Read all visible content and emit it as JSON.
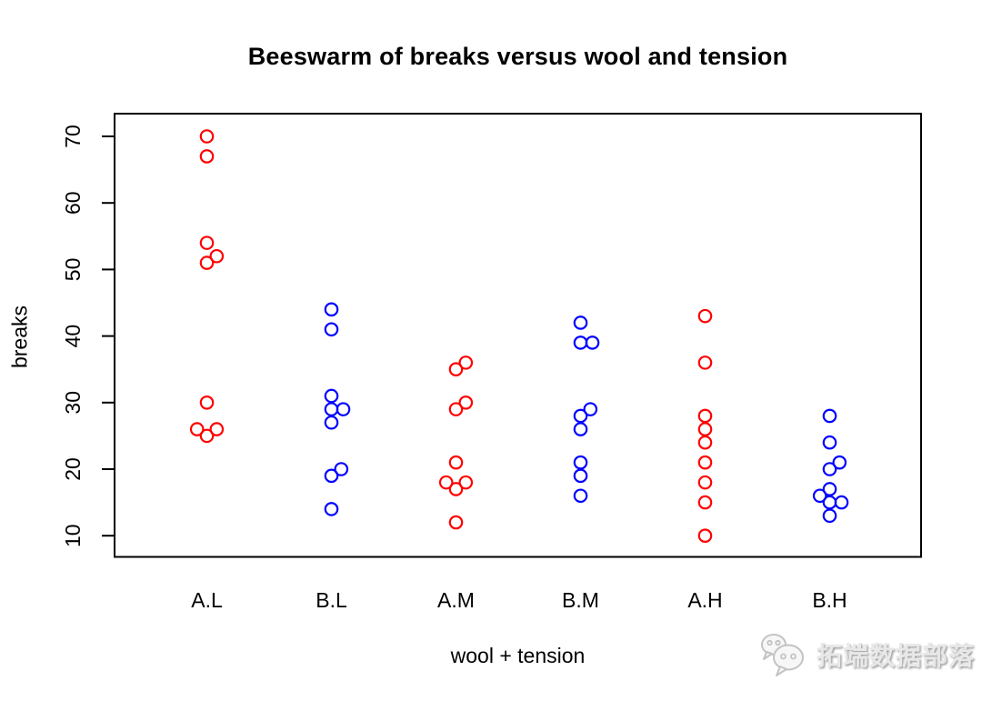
{
  "watermark": {
    "icon": "wechat-chat-bubbles-icon",
    "text": "拓端数据部落"
  },
  "chart_data": {
    "type": "scatter",
    "variant": "beeswarm",
    "title": "Beeswarm of breaks versus wool and tension",
    "xlabel": "wool + tension",
    "ylabel": "breaks",
    "x_categories": [
      "A.L",
      "B.L",
      "A.M",
      "B.M",
      "A.H",
      "B.H"
    ],
    "y_ticks": [
      10,
      20,
      30,
      40,
      50,
      60,
      70
    ],
    "ylim": [
      7.6,
      72.4
    ],
    "grid": false,
    "legend": "none",
    "marker": "open-circle",
    "series_colors": {
      "wool_A": "#ff0000",
      "wool_B": "#0000ff"
    },
    "groups": [
      {
        "label": "A.L",
        "wool": "A",
        "tension": "L",
        "color": "#ff0000",
        "points": [
          {
            "value": 70,
            "dx": 0
          },
          {
            "value": 67,
            "dx": 0
          },
          {
            "value": 54,
            "dx": 0
          },
          {
            "value": 52,
            "dx": 10.8
          },
          {
            "value": 51,
            "dx": 0
          },
          {
            "value": 30,
            "dx": 0
          },
          {
            "value": 26,
            "dx": -10.8
          },
          {
            "value": 26,
            "dx": 10.8
          },
          {
            "value": 25,
            "dx": 0
          }
        ]
      },
      {
        "label": "B.L",
        "wool": "B",
        "tension": "L",
        "color": "#0000ff",
        "points": [
          {
            "value": 44,
            "dx": 0
          },
          {
            "value": 41,
            "dx": 0
          },
          {
            "value": 31,
            "dx": 0
          },
          {
            "value": 29,
            "dx": 0
          },
          {
            "value": 29,
            "dx": 13
          },
          {
            "value": 27,
            "dx": 0
          },
          {
            "value": 20,
            "dx": 10.8
          },
          {
            "value": 19,
            "dx": 0
          },
          {
            "value": 14,
            "dx": 0
          }
        ]
      },
      {
        "label": "A.M",
        "wool": "A",
        "tension": "M",
        "color": "#ff0000",
        "points": [
          {
            "value": 36,
            "dx": 10.8
          },
          {
            "value": 35,
            "dx": 0
          },
          {
            "value": 30,
            "dx": 10.8
          },
          {
            "value": 29,
            "dx": 0
          },
          {
            "value": 21,
            "dx": 0
          },
          {
            "value": 18,
            "dx": -10.8
          },
          {
            "value": 18,
            "dx": 10.8
          },
          {
            "value": 17,
            "dx": 0
          },
          {
            "value": 12,
            "dx": 0
          }
        ]
      },
      {
        "label": "B.M",
        "wool": "B",
        "tension": "M",
        "color": "#0000ff",
        "points": [
          {
            "value": 42,
            "dx": 0
          },
          {
            "value": 39,
            "dx": 0
          },
          {
            "value": 39,
            "dx": 13
          },
          {
            "value": 29,
            "dx": 10.8
          },
          {
            "value": 28,
            "dx": 0
          },
          {
            "value": 26,
            "dx": 0
          },
          {
            "value": 21,
            "dx": 0
          },
          {
            "value": 19,
            "dx": 0
          },
          {
            "value": 16,
            "dx": 0
          }
        ]
      },
      {
        "label": "A.H",
        "wool": "A",
        "tension": "H",
        "color": "#ff0000",
        "points": [
          {
            "value": 43,
            "dx": 0
          },
          {
            "value": 36,
            "dx": 0
          },
          {
            "value": 28,
            "dx": 0
          },
          {
            "value": 26,
            "dx": 0
          },
          {
            "value": 24,
            "dx": 0
          },
          {
            "value": 21,
            "dx": 0
          },
          {
            "value": 18,
            "dx": 0
          },
          {
            "value": 15,
            "dx": 0
          },
          {
            "value": 10,
            "dx": 0
          }
        ]
      },
      {
        "label": "B.H",
        "wool": "B",
        "tension": "H",
        "color": "#0000ff",
        "points": [
          {
            "value": 28,
            "dx": 0
          },
          {
            "value": 24,
            "dx": 0
          },
          {
            "value": 21,
            "dx": 10.8
          },
          {
            "value": 20,
            "dx": 0
          },
          {
            "value": 17,
            "dx": 0
          },
          {
            "value": 16,
            "dx": -10.8
          },
          {
            "value": 15,
            "dx": 0
          },
          {
            "value": 15,
            "dx": 13
          },
          {
            "value": 13,
            "dx": 0
          }
        ]
      }
    ]
  }
}
